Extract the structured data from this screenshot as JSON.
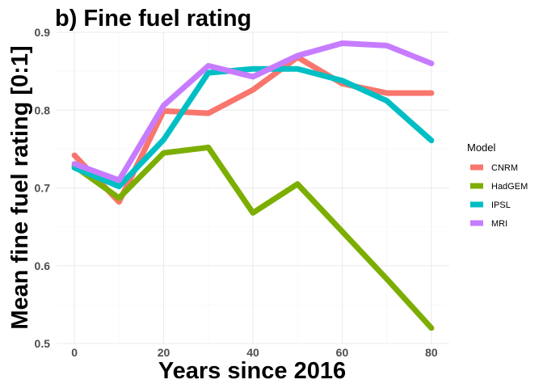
{
  "chart_data": {
    "type": "line",
    "title": "b) Fine fuel rating",
    "xlabel": "Years since 2016",
    "ylabel": "Mean fine fuel rating [0:1]",
    "x": [
      0,
      10,
      20,
      30,
      40,
      50,
      60,
      70,
      80
    ],
    "xlim": [
      -4,
      84
    ],
    "ylim": [
      0.5,
      0.9
    ],
    "xticks": [
      0,
      20,
      40,
      60,
      80
    ],
    "yticks": [
      0.5,
      0.6,
      0.7,
      0.8,
      0.9
    ],
    "xtick_labels": [
      "0",
      "20",
      "40",
      "60",
      "80"
    ],
    "ytick_labels": [
      "0.5",
      "0.6",
      "0.7",
      "0.8",
      "0.9"
    ],
    "grid": true,
    "legend": {
      "title": "Model",
      "placement": "right"
    },
    "series": [
      {
        "name": "CNRM",
        "color": "#F8766D",
        "values": [
          0.742,
          0.682,
          0.799,
          0.796,
          0.826,
          0.868,
          0.834,
          0.822,
          0.822
        ]
      },
      {
        "name": "HadGEM",
        "color": "#7CAE00",
        "values": [
          0.728,
          0.687,
          0.745,
          0.752,
          0.668,
          0.705,
          0.644,
          0.583,
          0.52
        ]
      },
      {
        "name": "IPSL",
        "color": "#00BFC4",
        "values": [
          0.726,
          0.702,
          0.762,
          0.848,
          0.853,
          0.853,
          0.838,
          0.812,
          0.761
        ]
      },
      {
        "name": "MRI",
        "color": "#C77CFF",
        "values": [
          0.731,
          0.71,
          0.806,
          0.857,
          0.843,
          0.87,
          0.886,
          0.883,
          0.86
        ]
      }
    ]
  }
}
